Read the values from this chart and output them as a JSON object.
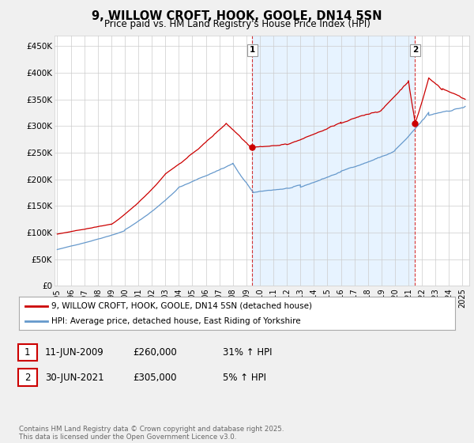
{
  "title": "9, WILLOW CROFT, HOOK, GOOLE, DN14 5SN",
  "subtitle": "Price paid vs. HM Land Registry's House Price Index (HPI)",
  "ylim": [
    0,
    470000
  ],
  "yticks": [
    0,
    50000,
    100000,
    150000,
    200000,
    250000,
    300000,
    350000,
    400000,
    450000
  ],
  "ytick_labels": [
    "£0",
    "£50K",
    "£100K",
    "£150K",
    "£200K",
    "£250K",
    "£300K",
    "£350K",
    "£400K",
    "£450K"
  ],
  "hpi_color": "#6699cc",
  "price_color": "#cc0000",
  "shade_color": "#ddeeff",
  "sale1_date": 2009.44,
  "sale1_price": 260000,
  "sale2_date": 2021.49,
  "sale2_price": 305000,
  "legend_property": "9, WILLOW CROFT, HOOK, GOOLE, DN14 5SN (detached house)",
  "legend_hpi": "HPI: Average price, detached house, East Riding of Yorkshire",
  "note1_date": "11-JUN-2009",
  "note1_price": "£260,000",
  "note1_pct": "31% ↑ HPI",
  "note2_date": "30-JUN-2021",
  "note2_price": "£305,000",
  "note2_pct": "5% ↑ HPI",
  "footer": "Contains HM Land Registry data © Crown copyright and database right 2025.\nThis data is licensed under the Open Government Licence v3.0.",
  "background_color": "#f0f0f0",
  "plot_background": "#ffffff"
}
